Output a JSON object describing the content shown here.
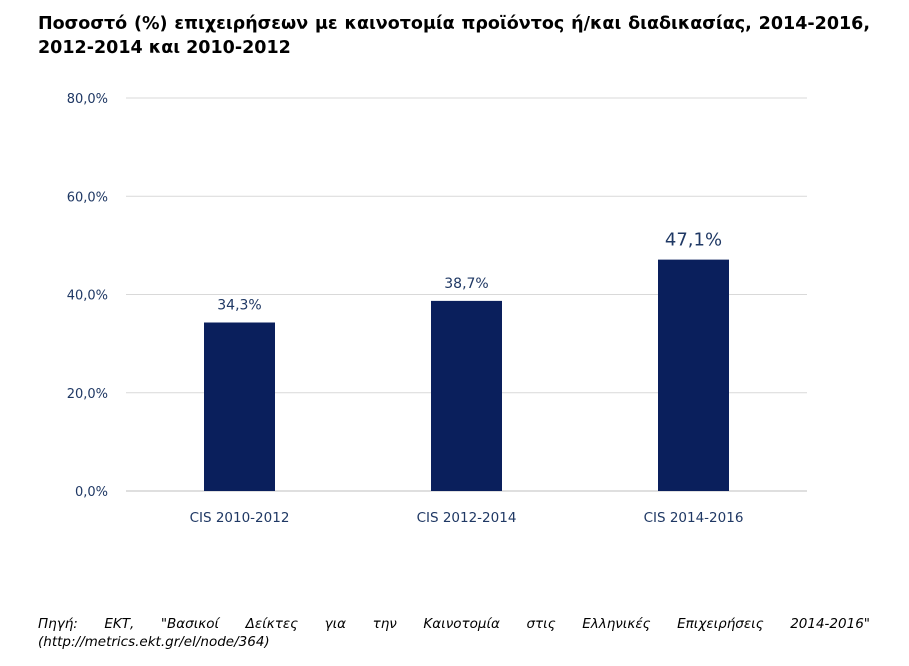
{
  "title": "Ποσοστό (%) επιχειρήσεων με καινοτομία προϊόντος ή/και διαδικασίας, 2014-2016, 2012-2014 και 2010-2012",
  "source_line1": "Πηγή: ΕΚΤ, \"Βασικοί Δείκτες για την Καινοτομία στις Ελληνικές Επιχειρήσεις 2014-2016\"",
  "source_line2": "(http://metrics.ekt.gr/el/node/364)",
  "colors": {
    "bar": "#0a1f5c",
    "grid": "#d9d9d9",
    "axis_text": "#1f3864"
  },
  "chart_data": {
    "type": "bar",
    "categories": [
      "CIS 2010-2012",
      "CIS 2012-2014",
      "CIS 2014-2016"
    ],
    "values": [
      34.3,
      38.7,
      47.1
    ],
    "data_labels": [
      "34,3%",
      "38,7%",
      "47,1%"
    ],
    "ylim": [
      0,
      80
    ],
    "yticks": [
      0,
      20,
      40,
      60,
      80
    ],
    "ytick_labels": [
      "0,0%",
      "20,0%",
      "40,0%",
      "60,0%",
      "80,0%"
    ],
    "grid": true,
    "xlabel": "",
    "ylabel": ""
  }
}
